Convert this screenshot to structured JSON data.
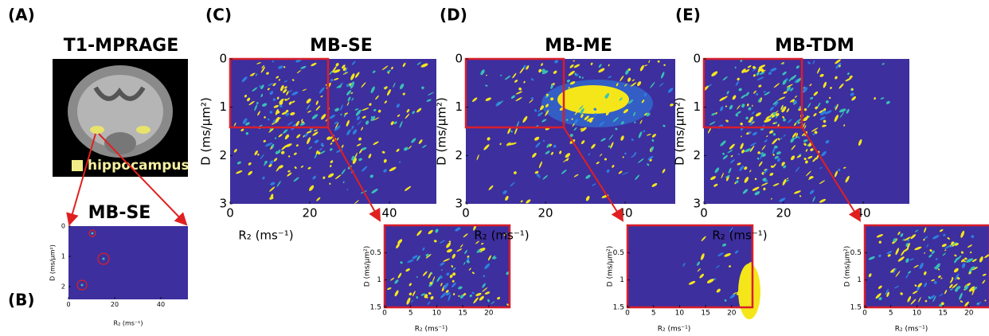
{
  "panels": [
    {
      "label": "(A)",
      "title": "T1-MPRAGE",
      "legend": "hippocampus"
    },
    {
      "label": "(B)",
      "title": "MB-SE",
      "y_label": "D (ms/μm²)",
      "x_label": "R₂ (ms⁻¹)",
      "yticks": [
        0,
        1,
        2
      ],
      "xticks": [
        0,
        20,
        40
      ]
    },
    {
      "label": "(C)",
      "title": "MB-SE",
      "y_label": "D (ms/μm²)",
      "x_label": "R₂  (ms⁻¹)",
      "yticks": [
        0,
        1,
        2,
        3
      ],
      "xticks": [
        0,
        20,
        40
      ],
      "inset": {
        "y_label": "D (ms/μm²)",
        "x_label": "R₂ (ms⁻¹)",
        "yticks": [
          0.5,
          1,
          1.5
        ],
        "xticks": [
          0,
          5,
          10,
          15,
          20
        ]
      }
    },
    {
      "label": "(D)",
      "title": "MB-ME",
      "y_label": "D (ms/μm²)",
      "x_label": "R₂  (ms⁻¹)",
      "yticks": [
        0,
        1,
        2,
        3
      ],
      "xticks": [
        0,
        20,
        40
      ],
      "inset": {
        "y_label": "D (ms/μm²)",
        "x_label": "R₂ (ms⁻¹)",
        "yticks": [
          0.5,
          1,
          1.5
        ],
        "xticks": [
          0,
          5,
          10,
          15,
          20
        ]
      }
    },
    {
      "label": "(E)",
      "title": "MB-TDM",
      "y_label": "D (ms/μm²)",
      "x_label": "R₂  (ms⁻¹)",
      "yticks": [
        0,
        1,
        2,
        3
      ],
      "xticks": [
        0,
        20,
        40
      ],
      "inset": {
        "y_label": "D (ms/μm²)",
        "x_label": "R₂ (ms⁻¹)",
        "yticks": [
          0.5,
          1,
          1.5
        ],
        "xticks": [
          0,
          5,
          10,
          15,
          20
        ]
      }
    }
  ]
}
